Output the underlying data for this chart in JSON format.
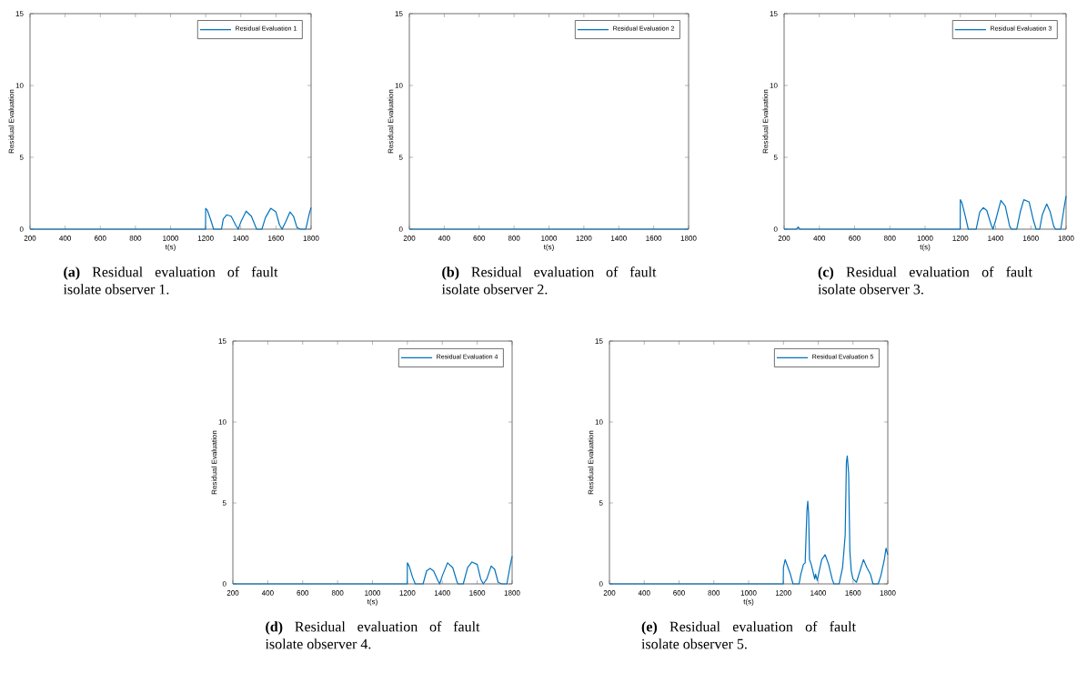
{
  "chart_data": [
    {
      "type": "line",
      "xlabel": "t(s)",
      "ylabel": "Residual Evaluation",
      "xlim": [
        200,
        1800
      ],
      "ylim": [
        0,
        15
      ],
      "xticks": [
        200,
        400,
        600,
        800,
        1000,
        1200,
        1400,
        1600,
        1800
      ],
      "yticks": [
        0,
        5,
        10,
        15
      ],
      "legend": "top right",
      "annotations": [
        "**(a)** Residual evaluation of fault isolate observer 1."
      ],
      "x": [
        200,
        1199,
        1200,
        1210,
        1230,
        1245,
        1290,
        1300,
        1320,
        1345,
        1370,
        1385,
        1400,
        1430,
        1460,
        1490,
        1520,
        1540,
        1570,
        1600,
        1620,
        1635,
        1655,
        1680,
        1700,
        1720,
        1740,
        1770,
        1790,
        1800
      ],
      "series": [
        {
          "name": "Residual Evaluation 1",
          "color": "#0072bd",
          "values": [
            0,
            0,
            1.45,
            1.3,
            0.6,
            0,
            0,
            0.7,
            1.0,
            0.9,
            0.3,
            0,
            0.5,
            1.25,
            0.9,
            0,
            0,
            0.8,
            1.45,
            1.2,
            0.3,
            0,
            0.5,
            1.2,
            0.9,
            0.1,
            0,
            0,
            1.1,
            1.5
          ]
        }
      ]
    },
    {
      "type": "line",
      "xlabel": "t(s)",
      "ylabel": "Residual Evaluation",
      "xlim": [
        200,
        1800
      ],
      "ylim": [
        0,
        15
      ],
      "xticks": [
        200,
        400,
        600,
        800,
        1000,
        1200,
        1400,
        1600,
        1800
      ],
      "yticks": [
        0,
        5,
        10,
        15
      ],
      "legend": "top right",
      "annotations": [
        "**(b)** Residual evaluation of fault isolate observer 2."
      ],
      "x": [
        200,
        1800
      ],
      "series": [
        {
          "name": "Residual Evaluation 2",
          "color": "#0072bd",
          "values": [
            0,
            0
          ]
        }
      ]
    },
    {
      "type": "line",
      "xlabel": "t(s)",
      "ylabel": "Residual Evaluation",
      "xlim": [
        200,
        1800
      ],
      "ylim": [
        0,
        15
      ],
      "xticks": [
        200,
        400,
        600,
        800,
        1000,
        1200,
        1400,
        1600,
        1800
      ],
      "yticks": [
        0,
        5,
        10,
        15
      ],
      "legend": "top right",
      "annotations": [
        "**(c)** Residual evaluation of fault isolate observer 3."
      ],
      "x": [
        200,
        270,
        280,
        290,
        1199,
        1200,
        1210,
        1230,
        1245,
        1290,
        1310,
        1330,
        1350,
        1375,
        1385,
        1400,
        1430,
        1455,
        1480,
        1490,
        1520,
        1540,
        1560,
        1590,
        1615,
        1630,
        1650,
        1665,
        1690,
        1710,
        1730,
        1740,
        1770,
        1790,
        1800
      ],
      "series": [
        {
          "name": "Residual Evaluation 3",
          "color": "#0072bd",
          "values": [
            0,
            0,
            0.15,
            0,
            0,
            2.05,
            1.8,
            0.8,
            0,
            0,
            1.2,
            1.5,
            1.3,
            0.3,
            0,
            0.6,
            2.0,
            1.6,
            0.2,
            0,
            0,
            1.2,
            2.05,
            1.9,
            0.6,
            0,
            0,
            1.0,
            1.75,
            1.2,
            0.2,
            0,
            0,
            1.6,
            2.3
          ]
        }
      ]
    },
    {
      "type": "line",
      "xlabel": "t(s)",
      "ylabel": "Residual Evaluation",
      "xlim": [
        200,
        1800
      ],
      "ylim": [
        0,
        15
      ],
      "xticks": [
        200,
        400,
        600,
        800,
        1000,
        1200,
        1400,
        1600,
        1800
      ],
      "yticks": [
        0,
        5,
        10,
        15
      ],
      "legend": "top right",
      "annotations": [
        "**(d)** Residual evaluation of fault isolate observer 4."
      ],
      "x": [
        200,
        1199,
        1200,
        1210,
        1230,
        1245,
        1290,
        1310,
        1330,
        1350,
        1375,
        1385,
        1400,
        1430,
        1460,
        1485,
        1490,
        1520,
        1545,
        1570,
        1600,
        1620,
        1635,
        1655,
        1680,
        1700,
        1720,
        1740,
        1770,
        1790,
        1800
      ],
      "series": [
        {
          "name": "Residual Evaluation 4",
          "color": "#0072bd",
          "values": [
            0,
            0,
            1.3,
            1.1,
            0.4,
            0,
            0,
            0.8,
            0.95,
            0.8,
            0.2,
            0,
            0.5,
            1.3,
            1.0,
            0.1,
            0,
            0,
            1.0,
            1.35,
            1.2,
            0.3,
            0,
            0.3,
            1.1,
            0.9,
            0.1,
            0,
            0,
            1.2,
            1.7
          ]
        }
      ]
    },
    {
      "type": "line",
      "xlabel": "t(s)",
      "ylabel": "Residual Evaluation",
      "xlim": [
        200,
        1800
      ],
      "ylim": [
        0,
        15
      ],
      "xticks": [
        200,
        400,
        600,
        800,
        1000,
        1200,
        1400,
        1600,
        1800
      ],
      "yticks": [
        0,
        5,
        10,
        15
      ],
      "legend": "top right",
      "annotations": [
        "**(e)** Residual evaluation of fault isolate observer 5."
      ],
      "x": [
        200,
        1199,
        1200,
        1210,
        1220,
        1240,
        1255,
        1290,
        1300,
        1315,
        1325,
        1335,
        1340,
        1345,
        1350,
        1360,
        1380,
        1385,
        1395,
        1400,
        1420,
        1440,
        1460,
        1480,
        1490,
        1520,
        1540,
        1555,
        1562,
        1567,
        1575,
        1582,
        1590,
        1600,
        1620,
        1640,
        1660,
        1680,
        1700,
        1715,
        1745,
        1760,
        1780,
        1790,
        1800
      ],
      "series": [
        {
          "name": "Residual Evaluation 5",
          "color": "#0072bd",
          "values": [
            0,
            0,
            1.0,
            1.5,
            1.2,
            0.6,
            0,
            0,
            0.6,
            1.2,
            1.3,
            4.5,
            5.1,
            4.3,
            1.5,
            1.2,
            0.3,
            0.6,
            0.2,
            0.5,
            1.5,
            1.8,
            1.2,
            0.3,
            0,
            0,
            1.0,
            3.0,
            7.5,
            7.9,
            6.8,
            2.0,
            0.8,
            0.3,
            0.1,
            0.8,
            1.5,
            1.0,
            0.6,
            0,
            0,
            0.5,
            1.5,
            2.2,
            1.8
          ]
        }
      ]
    }
  ]
}
